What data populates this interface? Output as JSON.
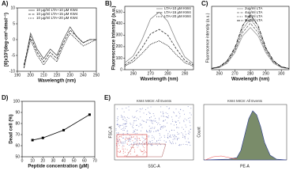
{
  "chart_data": [
    {
      "type": "line",
      "panel_label": "A)",
      "xlabel": "Wavelength (nm)",
      "ylabel": "[θ]x10³(deg·cm²·dmol⁻¹)",
      "x": [
        195,
        200,
        205,
        210,
        215,
        220,
        225,
        230,
        235,
        240,
        245,
        250
      ],
      "xlim": [
        190,
        250
      ],
      "xticks": [
        190,
        200,
        210,
        220,
        230,
        240,
        250
      ],
      "ylim": [
        -10,
        10
      ],
      "yticks": [
        -10,
        -5,
        0,
        5,
        10
      ],
      "series": [
        {
          "name": "10 µg/ml LTA+10 µM KW4",
          "color": "#555555",
          "values": [
            -9,
            2,
            -3,
            -6,
            -3,
            -5,
            0,
            4,
            1,
            -1,
            0,
            0
          ]
        },
        {
          "name": "10 µg/ml LTA+15 µM KW4",
          "color": "#222222",
          "values": [
            -8,
            1,
            -4,
            -7,
            -4,
            -6,
            -1,
            3,
            1,
            -1,
            0,
            0
          ]
        },
        {
          "name": "10 µg/ml LTA+20 µM KW4",
          "color": "#000000",
          "values": [
            -9,
            0,
            -5,
            -8,
            -5,
            -7,
            -2,
            2,
            0,
            -2,
            -1,
            0
          ]
        }
      ]
    },
    {
      "type": "line",
      "panel_label": "B)",
      "xlabel": "Wavelength (nm)",
      "ylabel": "Fluorescence intensity (a.u.)",
      "x": [
        255,
        260,
        265,
        270,
        275,
        280,
        285,
        290,
        295
      ],
      "xlim": [
        255,
        295
      ],
      "xticks": [
        260,
        270,
        280,
        290
      ],
      "ylim": [
        0,
        550
      ],
      "yticks": [
        0,
        100,
        200,
        300,
        400,
        500
      ],
      "series": [
        {
          "name": "LTA+10 µM KW4",
          "color": "#888888",
          "values": [
            60,
            120,
            260,
            440,
            500,
            420,
            250,
            110,
            50
          ]
        },
        {
          "name": "LTA+15 µM KW4",
          "color": "#333333",
          "values": [
            40,
            90,
            190,
            310,
            350,
            300,
            180,
            80,
            40
          ]
        },
        {
          "name": "LTA+20 µM KW4",
          "color": "#000000",
          "values": [
            30,
            70,
            140,
            220,
            250,
            210,
            130,
            60,
            30
          ]
        }
      ]
    },
    {
      "type": "line",
      "panel_label": "C)",
      "xlabel": "Wavelength (nm)",
      "ylabel": "Fluorescence intensity (a.u.)",
      "x": [
        255,
        260,
        265,
        270,
        275,
        280,
        285,
        290,
        295,
        300,
        305
      ],
      "xlim": [
        255,
        305
      ],
      "xticks": [
        260,
        270,
        280,
        290,
        300
      ],
      "ylim": [
        0,
        300
      ],
      "yticks": [],
      "series": [
        {
          "name": "2ug/ml LTA",
          "color": "#999999",
          "values": [
            5,
            10,
            30,
            80,
            160,
            200,
            160,
            80,
            30,
            10,
            5
          ]
        },
        {
          "name": "4ug/ml LTA",
          "color": "#666666",
          "values": [
            5,
            12,
            34,
            88,
            176,
            220,
            176,
            88,
            34,
            12,
            5
          ]
        },
        {
          "name": "6ug/ml LTA",
          "color": "#333333",
          "values": [
            6,
            13,
            38,
            96,
            192,
            240,
            192,
            96,
            38,
            13,
            6
          ]
        },
        {
          "name": "8ug/ml LTA",
          "color": "#000000",
          "values": [
            6,
            14,
            42,
            104,
            208,
            260,
            208,
            104,
            42,
            14,
            6
          ]
        }
      ]
    },
    {
      "type": "line",
      "panel_label": "D)",
      "xlabel": "Peptide concentration (µM)",
      "ylabel": "Dead cell (%)",
      "x": [
        10,
        20,
        40,
        65
      ],
      "xlim": [
        0,
        70
      ],
      "xticks": [
        0,
        10,
        20,
        30,
        40,
        50,
        60,
        70
      ],
      "ylim": [
        50,
        100
      ],
      "yticks": [
        50,
        60,
        70,
        80,
        90,
        100
      ],
      "markers": true,
      "series": [
        {
          "name": "Dead cell",
          "color": "#000000",
          "values": [
            65,
            67,
            74,
            88
          ]
        }
      ]
    }
  ],
  "panel_e": {
    "label": "E)",
    "scatter_title": "KW4 MIC8: All Events",
    "scatter_xlabel": "SSC-A",
    "scatter_ylabel": "FSC-A",
    "hist_title": "KW4 MIC8: All Events",
    "hist_xlabel": "PE-A",
    "hist_ylabel": "Count"
  }
}
